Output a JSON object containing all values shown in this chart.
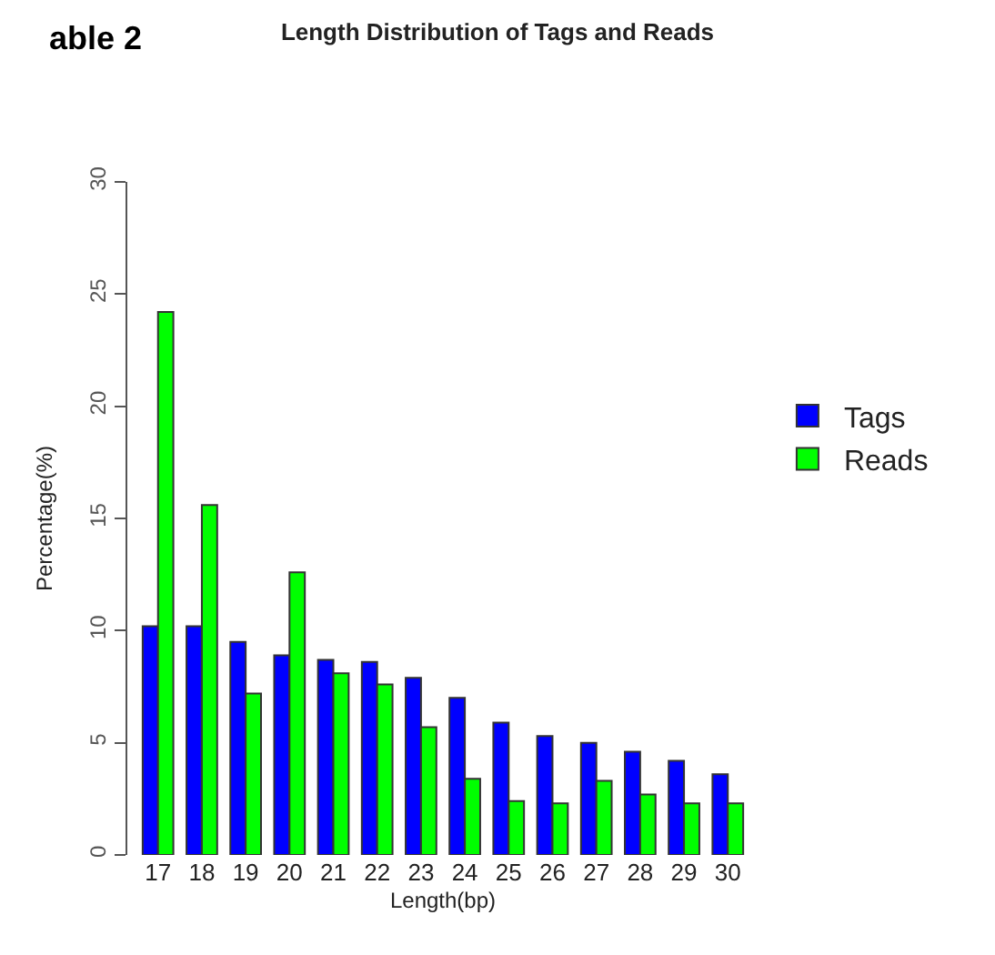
{
  "chart_data": {
    "type": "bar",
    "title": "Length Distribution of Tags and Reads",
    "xlabel": "Length(bp)",
    "ylabel": "Percentage(%)",
    "annotations": [
      "able 2"
    ],
    "categories": [
      "17",
      "18",
      "19",
      "20",
      "21",
      "22",
      "23",
      "24",
      "25",
      "26",
      "27",
      "28",
      "29",
      "30"
    ],
    "series": [
      {
        "name": "Tags",
        "color": "#0000ff",
        "values": [
          10.2,
          10.2,
          9.5,
          8.9,
          8.7,
          8.6,
          7.9,
          7.0,
          5.9,
          5.3,
          5.0,
          4.6,
          4.2,
          3.6
        ]
      },
      {
        "name": "Reads",
        "color": "#00ff00",
        "values": [
          24.2,
          15.6,
          7.2,
          12.6,
          8.1,
          7.6,
          5.7,
          3.4,
          2.4,
          2.3,
          3.3,
          2.7,
          2.3,
          2.3
        ]
      }
    ],
    "ylim": [
      0,
      30
    ],
    "yticks": [
      0,
      5,
      10,
      15,
      20,
      25,
      30
    ],
    "legend": "right"
  }
}
